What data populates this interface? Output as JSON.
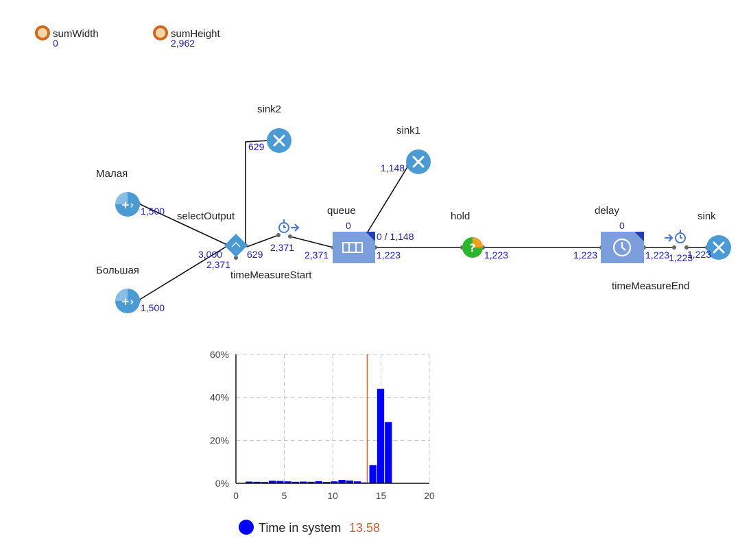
{
  "variables": [
    {
      "name": "sumWidth",
      "value": "0"
    },
    {
      "name": "sumHeight",
      "value": "2,962"
    }
  ],
  "blocks": {
    "sourceSmall": {
      "label": "Малая",
      "count": "1,500",
      "icon": "source-icon"
    },
    "sourceBig": {
      "label": "Большая",
      "count": "1,500",
      "icon": "source-icon"
    },
    "selectOutput": {
      "label": "selectOutput",
      "count_in": "3,000",
      "count_out_left": "2,371",
      "count_out_right": "629",
      "icon": "select-output-icon"
    },
    "sink2": {
      "label": "sink2",
      "count": "629",
      "icon": "sink-icon"
    },
    "timeMeasureStart": {
      "label": "timeMeasureStart",
      "count": "2,371",
      "icon": "time-measure-start-icon"
    },
    "queue": {
      "label": "queue",
      "count_in": "2,371",
      "count_top": "0",
      "count_capacity": "0 / 1,148",
      "count_out": "1,223",
      "icon": "queue-icon"
    },
    "sink1": {
      "label": "sink1",
      "count": "1,148",
      "icon": "sink-icon"
    },
    "hold": {
      "label": "hold",
      "count": "1,223",
      "icon": "hold-icon"
    },
    "delay": {
      "label": "delay",
      "count_in": "1,223",
      "count_top": "0",
      "count_out": "1,223",
      "icon": "delay-icon"
    },
    "timeMeasureEnd": {
      "label": "timeMeasureEnd",
      "count": "1,223",
      "icon": "time-measure-end-icon"
    },
    "sink": {
      "label": "sink",
      "count": "1,223",
      "icon": "sink-icon"
    }
  },
  "colors": {
    "block_blue": "#4a9ad4",
    "box_blue": "#7a9fdc",
    "counter_blue": "#1a1acc",
    "variable_orange": "#d2691e",
    "hold_green": "#2db52d",
    "hold_orange": "#f0a020",
    "bar_blue": "#0000ff",
    "mean_line": "#d0612a"
  },
  "chart_data": {
    "type": "bar",
    "title": "",
    "xlabel": "",
    "ylabel": "",
    "xlim": [
      0,
      20
    ],
    "ylim": [
      0,
      60
    ],
    "x_ticks": [
      "0",
      "5",
      "10",
      "15",
      "20"
    ],
    "y_ticks": [
      "0%",
      "20%",
      "40%",
      "60%"
    ],
    "bin_width": 0.8,
    "x": [
      1.0,
      1.8,
      2.6,
      3.4,
      4.2,
      5.0,
      5.8,
      6.6,
      7.4,
      8.2,
      9.0,
      9.8,
      10.6,
      11.4,
      12.2,
      13.0,
      13.8,
      14.6,
      15.4
    ],
    "values": [
      0.8,
      0.7,
      0.6,
      1.2,
      1.1,
      0.9,
      0.7,
      0.8,
      0.7,
      1.0,
      0.6,
      0.9,
      1.6,
      1.3,
      0.9,
      0.4,
      8.5,
      44,
      28.5
    ],
    "mean_value": 13.58,
    "grid": true,
    "legend": {
      "name": "Time in system",
      "value": "13.58",
      "position": "bottom"
    }
  }
}
